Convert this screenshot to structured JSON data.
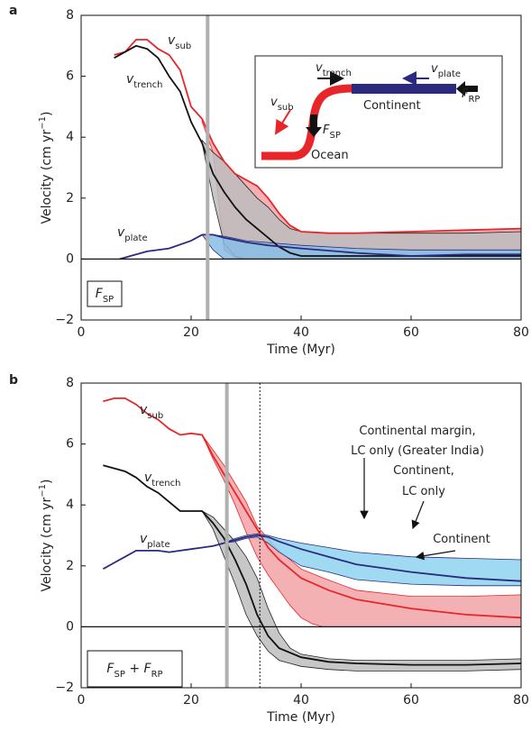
{
  "chart_data": [
    {
      "type": "line",
      "panel": "a",
      "xlabel": "Time (Myr)",
      "ylabel": [
        {
          "text": "Velocity (cm yr",
          "style": "normal"
        },
        {
          "text": "−1",
          "style": "sup"
        },
        {
          "text": ")",
          "style": "normal"
        }
      ],
      "xlim": [
        0,
        80
      ],
      "xticks": [
        0,
        20,
        40,
        60,
        80
      ],
      "ylim": [
        -2,
        8
      ],
      "yticks": [
        {
          "value": -2,
          "label": "−2"
        },
        0,
        2,
        4,
        6,
        8
      ],
      "vlines": [
        23
      ],
      "dotted_vlines": [],
      "series": [
        {
          "style": "band",
          "color": "#f2a3a6",
          "edge": "#e8262a",
          "x": [
            22,
            24,
            26,
            28,
            30,
            32,
            34,
            36,
            38,
            40,
            45,
            50,
            60,
            70,
            80
          ],
          "values": [
            4.6,
            3.8,
            3.2,
            2.8,
            2.6,
            2.4,
            2.0,
            1.5,
            1.1,
            0.9,
            0.85,
            0.85,
            0.9,
            0.95,
            1.0
          ],
          "lower": [
            4.5,
            3.5,
            0.3,
            0.05,
            0,
            0,
            0,
            0,
            0,
            0,
            0,
            0,
            0,
            0,
            0
          ]
        },
        {
          "style": "band",
          "color": "#bdbdbd",
          "edge": "#222222",
          "x": [
            22,
            24,
            26,
            28,
            30,
            32,
            34,
            36,
            38,
            40,
            45,
            50,
            60,
            70,
            80
          ],
          "values": [
            3.9,
            3.5,
            3.2,
            2.8,
            2.4,
            2.0,
            1.7,
            1.3,
            1.0,
            0.9,
            0.85,
            0.85,
            0.85,
            0.85,
            0.9
          ],
          "lower": [
            3.8,
            2.0,
            0.5,
            0.1,
            0,
            0,
            0,
            0,
            0,
            0,
            0,
            0,
            0,
            0,
            0
          ]
        },
        {
          "style": "band",
          "color": "#86bde6",
          "edge": "#2b2a7e",
          "x": [
            22,
            24,
            26,
            30,
            40,
            50,
            60,
            70,
            80
          ],
          "values": [
            0.8,
            0.8,
            0.75,
            0.6,
            0.45,
            0.35,
            0.3,
            0.3,
            0.3
          ],
          "lower": [
            0.8,
            0.3,
            0,
            0,
            0,
            0,
            0,
            0,
            0
          ]
        },
        {
          "style": "line",
          "color": "#e8262a",
          "x": [
            6,
            8,
            10,
            12,
            14,
            16,
            18,
            20,
            22,
            24,
            26,
            28,
            30,
            32,
            34,
            36,
            38,
            40,
            45,
            50,
            60,
            70,
            80
          ],
          "values": [
            6.7,
            6.8,
            7.2,
            7.2,
            6.9,
            6.7,
            6.2,
            5.0,
            4.6,
            3.8,
            3.2,
            2.8,
            2.6,
            2.4,
            2.0,
            1.5,
            1.1,
            0.9,
            0.85,
            0.85,
            0.9,
            0.95,
            1.0
          ]
        },
        {
          "style": "line",
          "color": "#111111",
          "x": [
            6,
            8,
            10,
            12,
            14,
            16,
            18,
            20,
            22,
            23,
            24,
            26,
            28,
            30,
            32,
            34,
            36,
            38,
            40,
            50,
            60,
            80
          ],
          "values": [
            6.6,
            6.8,
            7.0,
            6.9,
            6.6,
            6.0,
            5.5,
            4.5,
            3.8,
            3.3,
            2.8,
            2.2,
            1.7,
            1.3,
            1.0,
            0.7,
            0.4,
            0.2,
            0.1,
            0.1,
            0.1,
            0.1
          ]
        },
        {
          "style": "line",
          "color": "#2b2a7e",
          "x": [
            7,
            10,
            12,
            16,
            20,
            22,
            24,
            26,
            30,
            34,
            40,
            50,
            60,
            70,
            80
          ],
          "values": [
            0,
            0.15,
            0.25,
            0.35,
            0.6,
            0.8,
            0.8,
            0.7,
            0.55,
            0.45,
            0.35,
            0.2,
            0.1,
            0.15,
            0.15
          ]
        }
      ],
      "curve_labels": [
        [
          {
            "text": "v",
            "style": "italic"
          },
          {
            "text": "sub",
            "style": "sub"
          }
        ],
        [
          {
            "text": "v",
            "style": "italic"
          },
          {
            "text": "trench",
            "style": "sub"
          }
        ],
        [
          {
            "text": "v",
            "style": "italic"
          },
          {
            "text": "plate",
            "style": "sub"
          }
        ]
      ],
      "legend": [
        {
          "text": "F",
          "style": "italic"
        },
        {
          "text": "SP",
          "style": "sub"
        }
      ],
      "inset_labels": [
        [
          {
            "text": "v",
            "style": "italic"
          },
          {
            "text": "trench",
            "style": "sub"
          }
        ],
        [
          {
            "text": "v",
            "style": "italic"
          },
          {
            "text": "plate",
            "style": "sub"
          }
        ],
        [
          {
            "text": "v",
            "style": "italic"
          },
          {
            "text": "sub",
            "style": "sub"
          }
        ],
        [
          {
            "text": "F",
            "style": "italic"
          },
          {
            "text": "RP",
            "style": "sub"
          }
        ],
        [
          {
            "text": "Continent",
            "style": "normal"
          }
        ],
        [
          {
            "text": "F",
            "style": "italic"
          },
          {
            "text": "SP",
            "style": "sub"
          }
        ],
        [
          {
            "text": "Ocean",
            "style": "normal"
          }
        ]
      ],
      "notes": []
    },
    {
      "type": "line",
      "panel": "b",
      "xlabel": "Time (Myr)",
      "ylabel": [
        {
          "text": "Velocity (cm yr",
          "style": "normal"
        },
        {
          "text": "−1",
          "style": "sup"
        },
        {
          "text": ")",
          "style": "normal"
        }
      ],
      "xlim": [
        0,
        80
      ],
      "xticks": [
        0,
        20,
        40,
        60,
        80
      ],
      "ylim": [
        -2,
        8
      ],
      "yticks": [
        {
          "value": -2,
          "label": "−2"
        },
        0,
        2,
        4,
        6,
        8
      ],
      "vlines": [
        26.5
      ],
      "dotted_vlines": [
        32.5
      ],
      "series": [
        {
          "style": "band",
          "color": "#f2a3a6",
          "edge": "#e8262a",
          "x": [
            22,
            24,
            26,
            28,
            30,
            32,
            34,
            36,
            38,
            40,
            42,
            44,
            50,
            60,
            70,
            80
          ],
          "values": [
            6.3,
            5.8,
            5.3,
            4.7,
            4.1,
            3.3,
            2.9,
            2.5,
            2.2,
            1.9,
            1.75,
            1.6,
            1.2,
            1.0,
            1.0,
            1.05
          ],
          "lower": [
            6.3,
            5.5,
            4.8,
            4.0,
            3.1,
            2.3,
            1.7,
            1.2,
            0.7,
            0.3,
            0.1,
            0,
            0,
            0,
            0,
            0
          ]
        },
        {
          "style": "band",
          "color": "#bdbdbd",
          "edge": "#222222",
          "x": [
            22,
            24,
            26,
            28,
            30,
            32,
            34,
            36,
            38,
            40,
            45,
            50,
            60,
            70,
            80
          ],
          "values": [
            3.8,
            3.6,
            3.2,
            2.8,
            2.3,
            1.6,
            0.6,
            -0.2,
            -0.7,
            -0.9,
            -1.05,
            -1.1,
            -1.1,
            -1.1,
            -1.05
          ],
          "lower": [
            3.8,
            3.2,
            2.3,
            1.4,
            0.4,
            -0.3,
            -0.8,
            -1.1,
            -1.2,
            -1.3,
            -1.4,
            -1.45,
            -1.45,
            -1.45,
            -1.4
          ]
        },
        {
          "style": "band",
          "color": "#8fd3f0",
          "edge": "#2b2a7e",
          "x": [
            26,
            28,
            30,
            32,
            34,
            36,
            40,
            45,
            50,
            60,
            70,
            80
          ],
          "values": [
            2.75,
            2.9,
            3.0,
            3.05,
            3.0,
            2.9,
            2.75,
            2.6,
            2.45,
            2.3,
            2.25,
            2.2
          ],
          "lower": [
            2.75,
            2.8,
            2.9,
            2.95,
            2.75,
            2.45,
            2.0,
            1.8,
            1.55,
            1.4,
            1.35,
            1.35
          ]
        },
        {
          "style": "line",
          "color": "#e8262a",
          "x": [
            4,
            6,
            8,
            10,
            12,
            14,
            16,
            18,
            20,
            22,
            24,
            26,
            28,
            30,
            32,
            34,
            36,
            40,
            45,
            50,
            60,
            70,
            80
          ],
          "values": [
            7.4,
            7.5,
            7.5,
            7.3,
            7.0,
            6.8,
            6.5,
            6.3,
            6.35,
            6.3,
            5.6,
            5.0,
            4.4,
            3.8,
            3.2,
            2.6,
            2.2,
            1.6,
            1.2,
            0.9,
            0.6,
            0.4,
            0.3
          ]
        },
        {
          "style": "line",
          "color": "#111111",
          "x": [
            4,
            6,
            8,
            10,
            12,
            14,
            16,
            18,
            20,
            22,
            24,
            26,
            28,
            30,
            32,
            34,
            36,
            40,
            45,
            50,
            60,
            70,
            80
          ],
          "values": [
            5.3,
            5.2,
            5.1,
            4.9,
            4.6,
            4.4,
            4.1,
            3.8,
            3.8,
            3.8,
            3.4,
            2.9,
            2.2,
            1.4,
            0.4,
            -0.3,
            -0.7,
            -1.0,
            -1.15,
            -1.2,
            -1.25,
            -1.25,
            -1.2
          ]
        },
        {
          "style": "line",
          "color": "#2b2a7e",
          "x": [
            4,
            6,
            8,
            10,
            12,
            14,
            16,
            18,
            20,
            22,
            24,
            26,
            28,
            30,
            32,
            34,
            36,
            40,
            45,
            50,
            60,
            70,
            80
          ],
          "values": [
            1.9,
            2.1,
            2.3,
            2.5,
            2.5,
            2.5,
            2.45,
            2.5,
            2.55,
            2.6,
            2.65,
            2.75,
            2.85,
            2.95,
            3.0,
            2.95,
            2.8,
            2.55,
            2.3,
            2.05,
            1.8,
            1.6,
            1.5
          ]
        }
      ],
      "curve_labels": [
        [
          {
            "text": "v",
            "style": "italic"
          },
          {
            "text": "sub",
            "style": "sub"
          }
        ],
        [
          {
            "text": "v",
            "style": "italic"
          },
          {
            "text": "trench",
            "style": "sub"
          }
        ],
        [
          {
            "text": "v",
            "style": "italic"
          },
          {
            "text": "plate",
            "style": "sub"
          }
        ]
      ],
      "legend": [
        {
          "text": "F",
          "style": "italic"
        },
        {
          "text": "SP",
          "style": "sub"
        },
        {
          "text": " + ",
          "style": "normal"
        },
        {
          "text": "F",
          "style": "italic"
        },
        {
          "text": "RP",
          "style": "sub"
        }
      ],
      "inset_labels": [],
      "notes": [
        [
          {
            "text": "Continental margin,",
            "style": "normal"
          }
        ],
        [
          {
            "text": "LC only (Greater India)",
            "style": "normal"
          }
        ],
        [
          {
            "text": "Continent,",
            "style": "normal"
          }
        ],
        [
          {
            "text": "LC only",
            "style": "normal"
          }
        ],
        [
          {
            "text": "Continent",
            "style": "normal"
          }
        ]
      ]
    }
  ]
}
